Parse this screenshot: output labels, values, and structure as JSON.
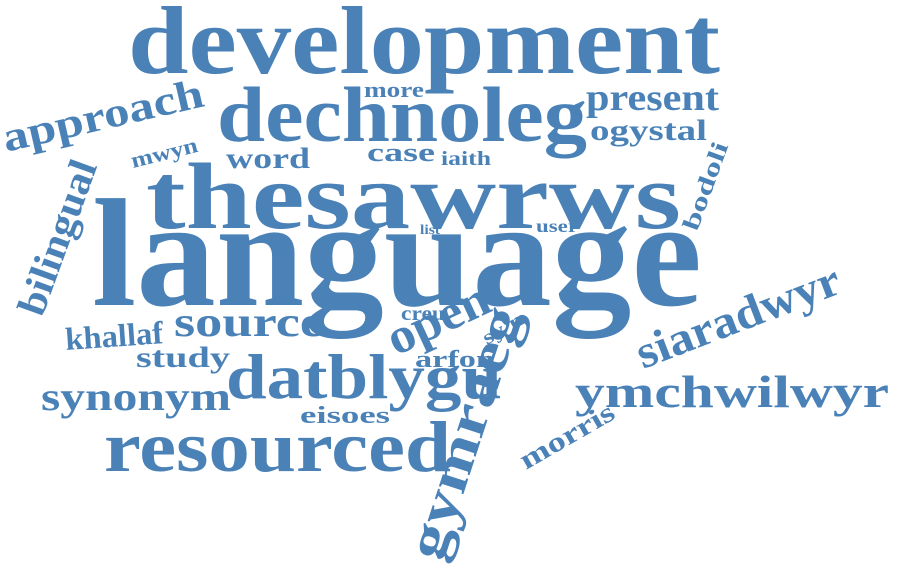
{
  "color": "#4a82b8",
  "words": [
    {
      "key": "development",
      "text": "development"
    },
    {
      "key": "dechnoleg",
      "text": "dechnoleg"
    },
    {
      "key": "more",
      "text": "more"
    },
    {
      "key": "present",
      "text": "present"
    },
    {
      "key": "approach",
      "text": "approach"
    },
    {
      "key": "mwyn",
      "text": "mwyn"
    },
    {
      "key": "ogystal",
      "text": "ogystal"
    },
    {
      "key": "word",
      "text": "word"
    },
    {
      "key": "case",
      "text": "case"
    },
    {
      "key": "iaith",
      "text": "iaith"
    },
    {
      "key": "bodoli",
      "text": "bodoli"
    },
    {
      "key": "thesawrws",
      "text": "thesawrws"
    },
    {
      "key": "bilingual",
      "text": "bilingual"
    },
    {
      "key": "list",
      "text": "list"
    },
    {
      "key": "user",
      "text": "user"
    },
    {
      "key": "language",
      "text": "language"
    },
    {
      "key": "siaradwyr",
      "text": "siaradwyr"
    },
    {
      "key": "khallaf",
      "text": "khallaf"
    },
    {
      "key": "source",
      "text": "source"
    },
    {
      "key": "creu",
      "text": "creu"
    },
    {
      "key": "open",
      "text": "open"
    },
    {
      "key": "syn",
      "text": "sy'n"
    },
    {
      "key": "study",
      "text": "study"
    },
    {
      "key": "arfon",
      "text": "arfon"
    },
    {
      "key": "datblygu",
      "text": "datblygu"
    },
    {
      "key": "gymraeg",
      "text": "gymraeg"
    },
    {
      "key": "ymchwilwyr",
      "text": "ymchwilwyr"
    },
    {
      "key": "synonym",
      "text": "synonym"
    },
    {
      "key": "eisoes",
      "text": "eisoes"
    },
    {
      "key": "morris",
      "text": "morris"
    },
    {
      "key": "resourced",
      "text": "resourced"
    }
  ]
}
